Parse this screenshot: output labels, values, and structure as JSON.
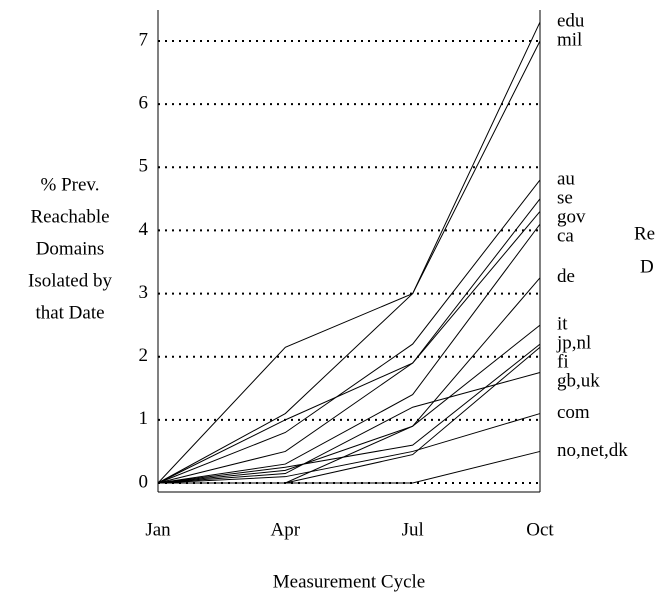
{
  "chart_data": {
    "type": "line",
    "ylabel": [
      "% Prev.",
      "Reachable",
      "Domains",
      "Isolated by",
      "that Date"
    ],
    "xlabel": "Measurement Cycle",
    "annotations": [
      "Re",
      "D"
    ],
    "categories": [
      "Jan",
      "Apr",
      "Jul",
      "Oct"
    ],
    "ylim": [
      0,
      7.5
    ],
    "yticks": [
      0,
      1,
      2,
      3,
      4,
      5,
      6,
      7
    ],
    "grid": true,
    "color": "#000000",
    "series": [
      {
        "name": "edu",
        "values": [
          0,
          2.15,
          3.0,
          7.3
        ]
      },
      {
        "name": "mil",
        "values": [
          0,
          1.1,
          3.0,
          7.0
        ]
      },
      {
        "name": "au",
        "values": [
          0,
          0.8,
          2.2,
          4.8
        ]
      },
      {
        "name": "se",
        "values": [
          0,
          0.5,
          1.9,
          4.5
        ]
      },
      {
        "name": "gov",
        "values": [
          0,
          1.0,
          1.9,
          4.3
        ]
      },
      {
        "name": "ca",
        "values": [
          0,
          0.3,
          1.4,
          4.1
        ]
      },
      {
        "name": "de",
        "values": [
          0,
          0.2,
          0.9,
          3.25
        ]
      },
      {
        "name": "it",
        "values": [
          0,
          0,
          0.9,
          2.5
        ]
      },
      {
        "name": "jp,nl",
        "values": [
          0,
          0.25,
          0.6,
          2.2
        ]
      },
      {
        "name": "fi",
        "values": [
          0,
          0,
          0.45,
          2.15
        ]
      },
      {
        "name": "gb,uk",
        "values": [
          0,
          0.15,
          1.2,
          1.75
        ]
      },
      {
        "name": "com",
        "values": [
          0,
          0.1,
          0.5,
          1.1
        ]
      },
      {
        "name": "no,net,dk",
        "values": [
          0,
          0,
          0,
          0.5
        ]
      }
    ]
  }
}
